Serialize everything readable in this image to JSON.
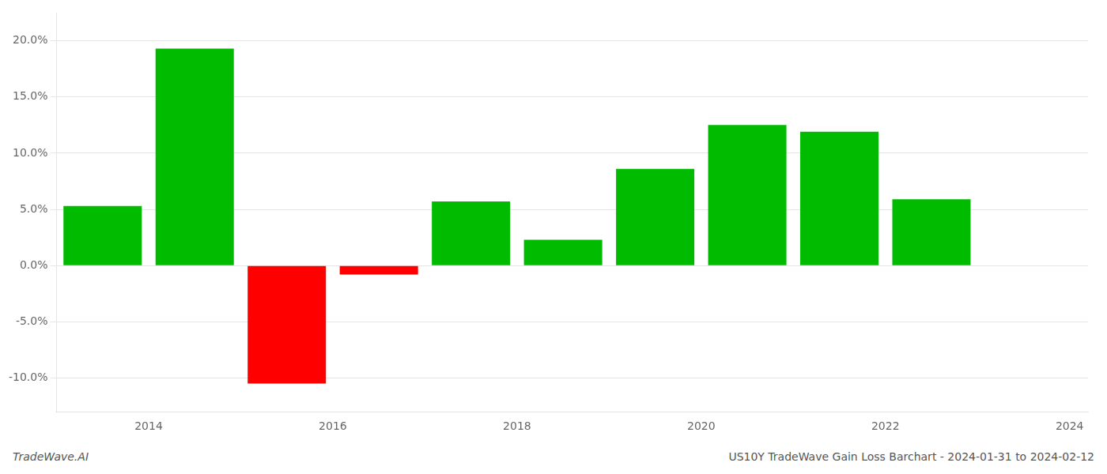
{
  "chart_data": {
    "type": "bar",
    "x": [
      2013.5,
      2014.5,
      2015.5,
      2016.5,
      2017.5,
      2018.5,
      2019.5,
      2020.5,
      2021.5,
      2022.5
    ],
    "values": [
      0.053,
      0.193,
      -0.105,
      -0.008,
      0.057,
      0.023,
      0.086,
      0.125,
      0.119,
      0.059
    ],
    "colors": [
      "#00bb00",
      "#00bb00",
      "#ff0000",
      "#ff0000",
      "#00bb00",
      "#00bb00",
      "#00bb00",
      "#00bb00",
      "#00bb00",
      "#00bb00"
    ],
    "xlim": [
      2013.0,
      2024.2
    ],
    "ylim": [
      -0.13,
      0.225
    ],
    "xticks": [
      2014,
      2016,
      2018,
      2020,
      2022,
      2024
    ],
    "yticks": [
      {
        "value": -0.1,
        "label": "-10.0%"
      },
      {
        "value": -0.05,
        "label": "-5.0%"
      },
      {
        "value": 0.0,
        "label": "0.0%"
      },
      {
        "value": 0.05,
        "label": "5.0%"
      },
      {
        "value": 0.1,
        "label": "10.0%"
      },
      {
        "value": 0.15,
        "label": "15.0%"
      },
      {
        "value": 0.2,
        "label": "20.0%"
      }
    ],
    "grid": true,
    "annotations": [
      "TradeWave.AI",
      "US10Y TradeWave Gain Loss Barchart - 2024-01-31 to 2024-02-12"
    ]
  }
}
